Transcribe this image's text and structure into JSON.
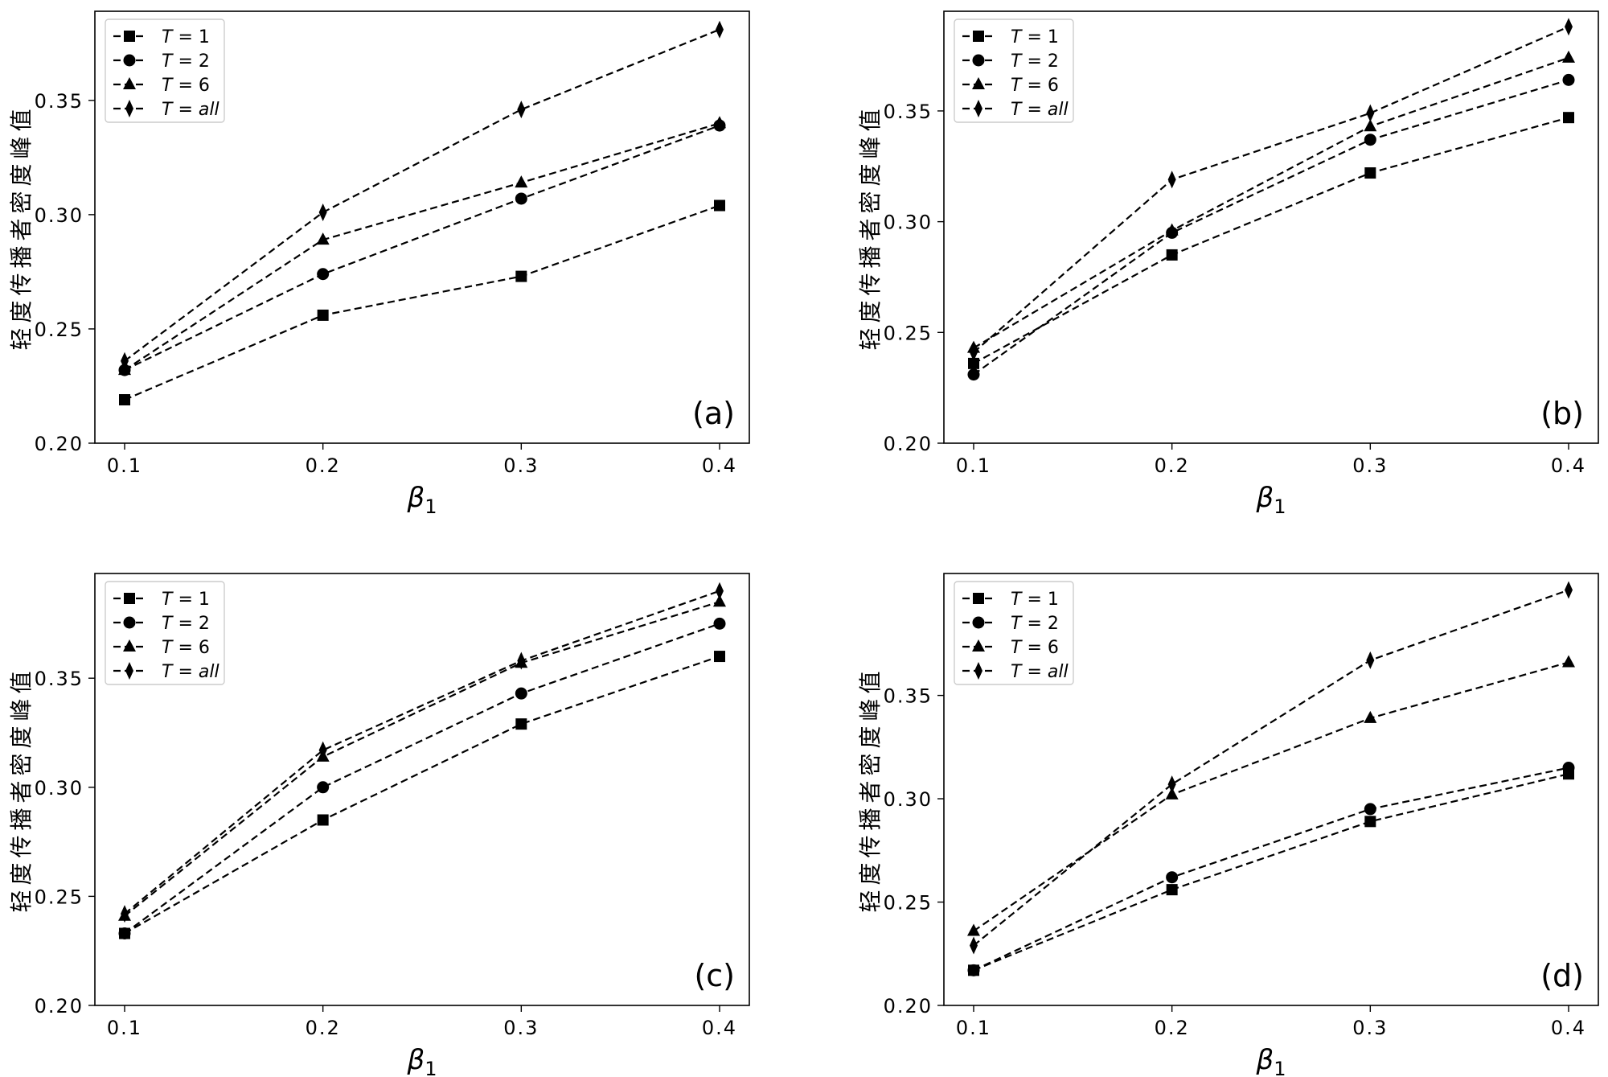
{
  "chart_data": [
    {
      "type": "line",
      "panel_label": "(a)",
      "x": [
        0.1,
        0.2,
        0.3,
        0.4
      ],
      "x_tick_labels": [
        "0.1",
        "0.2",
        "0.3",
        "0.4"
      ],
      "y_ticks": [
        0.2,
        0.25,
        0.3,
        0.35
      ],
      "y_tick_labels": [
        "0.20",
        "0.25",
        "0.30",
        "0.35"
      ],
      "xlim": [
        0.085,
        0.415
      ],
      "ylim": [
        0.2,
        0.389
      ],
      "xlabel": "β1",
      "ylabel": "轻度传播者密度峰值",
      "legend_position": "top-left",
      "grid": false,
      "series": [
        {
          "name": "T = 1",
          "marker": "square",
          "values": [
            0.219,
            0.256,
            0.273,
            0.304
          ]
        },
        {
          "name": "T = 2",
          "marker": "circle",
          "values": [
            0.232,
            0.274,
            0.307,
            0.339
          ]
        },
        {
          "name": "T = 6",
          "marker": "triangle",
          "values": [
            0.232,
            0.289,
            0.314,
            0.34
          ]
        },
        {
          "name": "T = all",
          "marker": "diamond",
          "values": [
            0.236,
            0.301,
            0.346,
            0.381
          ]
        }
      ]
    },
    {
      "type": "line",
      "panel_label": "(b)",
      "x": [
        0.1,
        0.2,
        0.3,
        0.4
      ],
      "x_tick_labels": [
        "0.1",
        "0.2",
        "0.3",
        "0.4"
      ],
      "y_ticks": [
        0.2,
        0.25,
        0.3,
        0.35
      ],
      "y_tick_labels": [
        "0.20",
        "0.25",
        "0.30",
        "0.35"
      ],
      "xlim": [
        0.085,
        0.415
      ],
      "ylim": [
        0.2,
        0.395
      ],
      "xlabel": "β1",
      "ylabel": "轻度传播者密度峰值",
      "legend_position": "top-left",
      "grid": false,
      "series": [
        {
          "name": "T = 1",
          "marker": "square",
          "values": [
            0.236,
            0.285,
            0.322,
            0.347
          ]
        },
        {
          "name": "T = 2",
          "marker": "circle",
          "values": [
            0.231,
            0.295,
            0.337,
            0.364
          ]
        },
        {
          "name": "T = 6",
          "marker": "triangle",
          "values": [
            0.243,
            0.296,
            0.343,
            0.374
          ]
        },
        {
          "name": "T = all",
          "marker": "diamond",
          "values": [
            0.241,
            0.319,
            0.349,
            0.388
          ]
        }
      ]
    },
    {
      "type": "line",
      "panel_label": "(c)",
      "x": [
        0.1,
        0.2,
        0.3,
        0.4
      ],
      "x_tick_labels": [
        "0.1",
        "0.2",
        "0.3",
        "0.4"
      ],
      "y_ticks": [
        0.2,
        0.25,
        0.3,
        0.35
      ],
      "y_tick_labels": [
        "0.20",
        "0.25",
        "0.30",
        "0.35"
      ],
      "xlim": [
        0.085,
        0.415
      ],
      "ylim": [
        0.2,
        0.398
      ],
      "xlabel": "β1",
      "ylabel": "轻度传播者密度峰值",
      "legend_position": "top-left",
      "grid": false,
      "series": [
        {
          "name": "T = 1",
          "marker": "square",
          "values": [
            0.233,
            0.285,
            0.329,
            0.36
          ]
        },
        {
          "name": "T = 2",
          "marker": "circle",
          "values": [
            0.233,
            0.3,
            0.343,
            0.375
          ]
        },
        {
          "name": "T = 6",
          "marker": "triangle",
          "values": [
            0.241,
            0.314,
            0.357,
            0.385
          ]
        },
        {
          "name": "T = all",
          "marker": "diamond",
          "values": [
            0.242,
            0.317,
            0.358,
            0.39
          ]
        }
      ]
    },
    {
      "type": "line",
      "panel_label": "(d)",
      "x": [
        0.1,
        0.2,
        0.3,
        0.4
      ],
      "x_tick_labels": [
        "0.1",
        "0.2",
        "0.3",
        "0.4"
      ],
      "y_ticks": [
        0.2,
        0.25,
        0.3,
        0.35
      ],
      "y_tick_labels": [
        "0.20",
        "0.25",
        "0.30",
        "0.35"
      ],
      "xlim": [
        0.085,
        0.415
      ],
      "ylim": [
        0.2,
        0.409
      ],
      "xlabel": "β1",
      "ylabel": "轻度传播者密度峰值",
      "legend_position": "top-left",
      "grid": false,
      "series": [
        {
          "name": "T = 1",
          "marker": "square",
          "values": [
            0.217,
            0.256,
            0.289,
            0.312
          ]
        },
        {
          "name": "T = 2",
          "marker": "circle",
          "values": [
            0.217,
            0.262,
            0.295,
            0.315
          ]
        },
        {
          "name": "T = 6",
          "marker": "triangle",
          "values": [
            0.236,
            0.302,
            0.339,
            0.366
          ]
        },
        {
          "name": "T = all",
          "marker": "diamond",
          "values": [
            0.229,
            0.307,
            0.367,
            0.401
          ]
        }
      ]
    }
  ]
}
